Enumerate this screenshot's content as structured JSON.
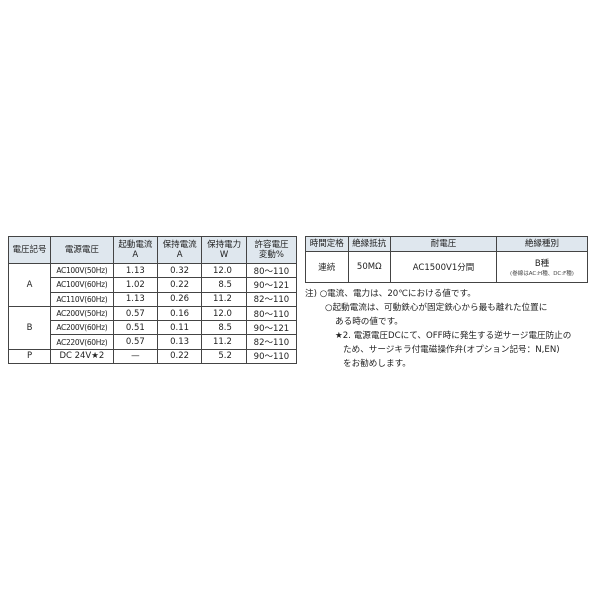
{
  "table1": {
    "headers": [
      "電圧記号",
      "電源電圧",
      "起動電流\nA",
      "保持電流\nA",
      "保持電力\nW",
      "許容電圧\n変動%"
    ],
    "header_lines": [
      [
        "電圧記号"
      ],
      [
        "電源電圧"
      ],
      [
        "起動電流",
        "A"
      ],
      [
        "保持電流",
        "A"
      ],
      [
        "保持電力",
        "W"
      ],
      [
        "許容電圧",
        "変動%"
      ]
    ],
    "groups": [
      {
        "code": "A",
        "rows": [
          [
            "AC100V(50Hz)",
            "1.13",
            "0.32",
            "12.0",
            "80～110"
          ],
          [
            "AC100V(60Hz)",
            "1.02",
            "0.22",
            "8.5",
            "90～121"
          ],
          [
            "AC110V(60Hz)",
            "1.13",
            "0.26",
            "11.2",
            "82～110"
          ]
        ]
      },
      {
        "code": "B",
        "rows": [
          [
            "AC200V(50Hz)",
            "0.57",
            "0.16",
            "12.0",
            "80～110"
          ],
          [
            "AC200V(60Hz)",
            "0.51",
            "0.11",
            "8.5",
            "90～121"
          ],
          [
            "AC220V(60Hz)",
            "0.57",
            "0.13",
            "11.2",
            "82～110"
          ]
        ]
      },
      {
        "code": "P",
        "rows": [
          [
            "DC 24V★2",
            "—",
            "0.22",
            "5.2",
            "90～110"
          ]
        ]
      }
    ]
  },
  "table2": {
    "headers": [
      "時間定格",
      "絶縁抵抗",
      "耐電圧",
      "絶縁種別"
    ],
    "row": [
      "連続",
      "50MΩ",
      "AC1500V1分間",
      "B種"
    ],
    "insulation_note": "(巻線はAC:H種、DC:F種)"
  },
  "notes": {
    "prefix": "注)",
    "lines": [
      "○電流、電力は、20℃における値です。",
      "○起動電流は、可動鉄心が固定鉄心から最も離れた位置に",
      "ある時の値です。",
      "★2. 電源電圧DCにて、OFF時に発生する逆サージ電圧防止の",
      "ため、サージキラ付電磁操作弁(オプション記号：N,EN)",
      "をお勧めします。"
    ]
  }
}
